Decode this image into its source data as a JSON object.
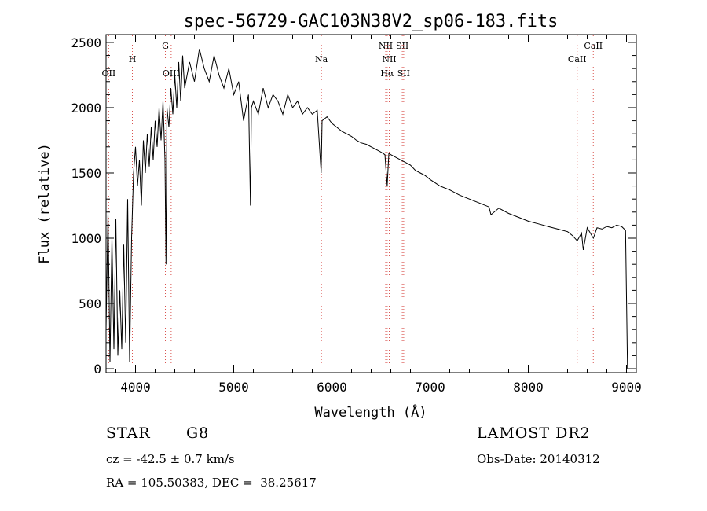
{
  "chart_data": {
    "type": "line",
    "title": "spec-56729-GAC103N38V2_sp06-183.fits",
    "xlabel": "Wavelength (Å)",
    "ylabel": "Flux (relative)",
    "xlim": [
      3700,
      9100
    ],
    "ylim": [
      -30,
      2560
    ],
    "xticks": [
      "4000",
      "5000",
      "6000",
      "7000",
      "8000",
      "9000"
    ],
    "yticks": [
      "0",
      "500",
      "1000",
      "1500",
      "2000",
      "2500"
    ],
    "grid": false,
    "series": [
      {
        "x": [
          3700,
          3720,
          3740,
          3760,
          3780,
          3800,
          3820,
          3840,
          3860,
          3880,
          3900,
          3920,
          3940,
          3960,
          3980,
          4000,
          4020,
          4040,
          4060,
          4080,
          4100,
          4120,
          4140,
          4160,
          4180,
          4200,
          4220,
          4240,
          4260,
          4280,
          4300,
          4310,
          4320,
          4340,
          4360,
          4380,
          4400,
          4420,
          4440,
          4460,
          4480,
          4500,
          4550,
          4600,
          4650,
          4700,
          4750,
          4800,
          4850,
          4900,
          4950,
          5000,
          5050,
          5100,
          5150,
          5170,
          5180,
          5200,
          5250,
          5300,
          5350,
          5400,
          5450,
          5500,
          5550,
          5600,
          5650,
          5700,
          5750,
          5800,
          5850,
          5890,
          5900,
          5950,
          6000,
          6050,
          6100,
          6150,
          6200,
          6250,
          6300,
          6350,
          6400,
          6450,
          6500,
          6540,
          6563,
          6580,
          6600,
          6650,
          6700,
          6750,
          6800,
          6850,
          6900,
          6950,
          7000,
          7100,
          7200,
          7300,
          7400,
          7500,
          7600,
          7620,
          7700,
          7800,
          7900,
          8000,
          8100,
          8200,
          8300,
          8400,
          8450,
          8498,
          8542,
          8560,
          8600,
          8662,
          8700,
          8750,
          8800,
          8850,
          8900,
          8950,
          8990,
          9000,
          9010
        ],
        "values": [
          300,
          1200,
          50,
          1000,
          150,
          1150,
          100,
          600,
          150,
          950,
          200,
          1300,
          50,
          1000,
          1500,
          1700,
          1400,
          1600,
          1250,
          1750,
          1500,
          1800,
          1550,
          1850,
          1600,
          1900,
          1700,
          2000,
          1750,
          2050,
          1600,
          800,
          2000,
          1850,
          2150,
          1950,
          2250,
          2000,
          2350,
          2050,
          2400,
          2150,
          2350,
          2200,
          2450,
          2300,
          2200,
          2400,
          2250,
          2150,
          2300,
          2100,
          2200,
          1900,
          2100,
          1250,
          2000,
          2050,
          1950,
          2150,
          2000,
          2100,
          2050,
          1950,
          2100,
          2000,
          2050,
          1950,
          2000,
          1950,
          1980,
          1500,
          1900,
          1930,
          1880,
          1850,
          1820,
          1800,
          1780,
          1750,
          1730,
          1720,
          1700,
          1680,
          1660,
          1640,
          1400,
          1650,
          1640,
          1620,
          1600,
          1580,
          1560,
          1520,
          1500,
          1480,
          1450,
          1400,
          1370,
          1330,
          1300,
          1270,
          1240,
          1180,
          1230,
          1190,
          1160,
          1130,
          1110,
          1090,
          1070,
          1050,
          1020,
          980,
          1040,
          910,
          1080,
          1000,
          1080,
          1070,
          1090,
          1080,
          1100,
          1090,
          1060,
          550,
          0
        ]
      }
    ],
    "lines": [
      {
        "label": "OII",
        "x": 3727,
        "row": "lower"
      },
      {
        "label": "H",
        "x": 3968,
        "row": "upper"
      },
      {
        "label": "G",
        "x": 4304,
        "row": "top"
      },
      {
        "label": "OIII",
        "x": 4363,
        "row": "lower"
      },
      {
        "label": "Na",
        "x": 5893,
        "row": "upper"
      },
      {
        "label": "NII",
        "x": 6548,
        "row": "top"
      },
      {
        "label": "NII",
        "x": 6584,
        "row": "upper"
      },
      {
        "label": "Hα",
        "x": 6563,
        "row": "lower"
      },
      {
        "label": "SII",
        "x": 6717,
        "row": "top"
      },
      {
        "label": "SII",
        "x": 6731,
        "row": "lower"
      },
      {
        "label": "CaII",
        "x": 8498,
        "row": "upper"
      },
      {
        "label": "CaII",
        "x": 8662,
        "row": "top"
      }
    ],
    "line_color": "#d9534f"
  },
  "info": {
    "class": "STAR",
    "subclass": "G8",
    "survey": "LAMOST DR2",
    "cz": "cz = -42.5 ± 0.7 km/s",
    "obs_date": "Obs-Date: 20140312",
    "coords": "RA = 105.50383, DEC =  38.25617"
  }
}
